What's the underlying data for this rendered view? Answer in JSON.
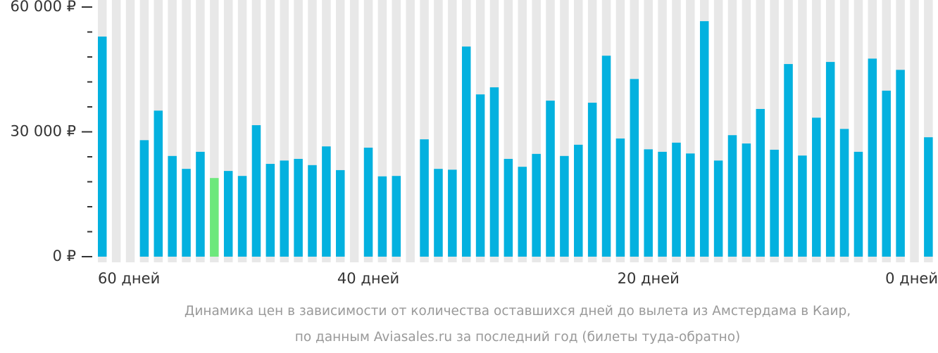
{
  "chart_data": {
    "type": "bar",
    "caption": [
      "Динамика цен в зависимости от количества оставшихся дней до вылета из Амстердама в Каир,",
      "по данным Aviasales.ru за последний год (билеты туда-обратно)"
    ],
    "categories": [
      "60 дней",
      null,
      null,
      null,
      null,
      null,
      null,
      null,
      null,
      null,
      null,
      null,
      null,
      null,
      null,
      null,
      null,
      null,
      null,
      "40 дней",
      null,
      null,
      null,
      null,
      null,
      null,
      null,
      null,
      null,
      null,
      null,
      null,
      null,
      null,
      null,
      null,
      null,
      null,
      null,
      "20 дней",
      null,
      null,
      null,
      null,
      null,
      null,
      null,
      null,
      null,
      null,
      null,
      null,
      null,
      null,
      null,
      null,
      null,
      null,
      null,
      "0 дней"
    ],
    "values": [
      52900,
      null,
      null,
      28000,
      35100,
      24200,
      21100,
      25200,
      18900,
      20600,
      19400,
      31600,
      22300,
      23100,
      23500,
      22000,
      26500,
      20800,
      null,
      26200,
      19300,
      19400,
      null,
      28200,
      21100,
      20900,
      50500,
      39000,
      40700,
      23500,
      21600,
      24700,
      37500,
      24200,
      26900,
      37000,
      48300,
      28400,
      42700,
      25800,
      25200,
      27400,
      24800,
      56600,
      23100,
      29200,
      27200,
      35500,
      25700,
      46300,
      24300,
      33400,
      46800,
      30700,
      25200,
      47600,
      39900,
      44900,
      null,
      28700
    ],
    "color": "#03b1df",
    "min_color": "#6de87c",
    "stripe_color": "#e8e8e8",
    "ylim": [
      0,
      60000
    ],
    "yticks": [
      {
        "value": 0,
        "label": "0 ₽"
      },
      {
        "value": 30000,
        "label": "30 000 ₽"
      },
      {
        "value": 60000,
        "label": "60 000 ₽"
      }
    ],
    "minor_yticks": [
      6000,
      12000,
      18000,
      24000,
      36000,
      42000,
      48000,
      54000
    ]
  }
}
